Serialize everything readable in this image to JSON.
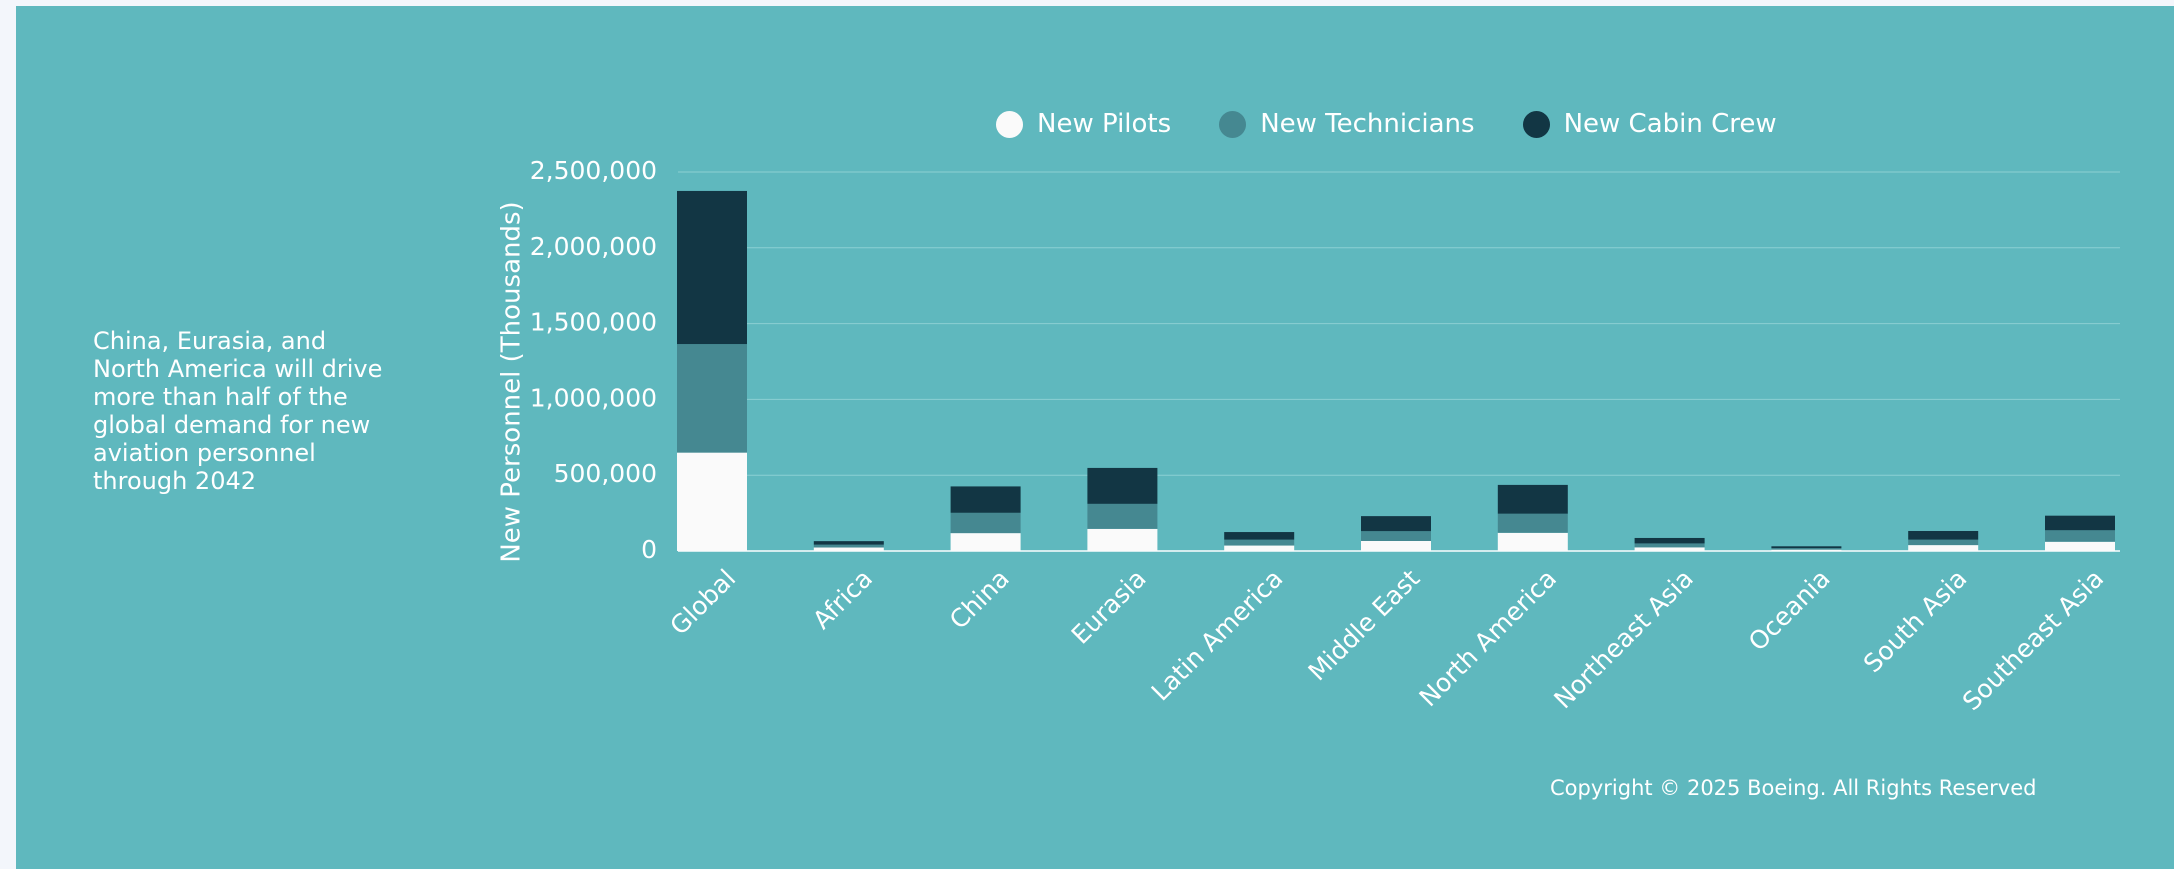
{
  "side_text": {
    "lines": [
      "China, Eurasia, and",
      "North America will drive",
      "more than half of the",
      "global demand for new",
      "aviation personnel",
      "through 2042"
    ]
  },
  "copyright": "Copyright © 2025 Boeing.  All  Rights Reserved",
  "chart_data": {
    "type": "bar",
    "stacked": true,
    "title": "",
    "xlabel": "",
    "ylabel": "New Personnel (Thousands)",
    "ylim": [
      0,
      2500000
    ],
    "yticks": [
      0,
      500000,
      1000000,
      1500000,
      2000000,
      2500000
    ],
    "ytick_labels": [
      "0",
      "500,000",
      "1,000,000",
      "1,500,000",
      "2,000,000",
      "2,500,000"
    ],
    "grid": true,
    "legend_position": "top",
    "categories": [
      "Global",
      "Africa",
      "China",
      "Eurasia",
      "Latin America",
      "Middle East",
      "North America",
      "Northeast Asia",
      "Oceania",
      "South Asia",
      "Southeast Asia"
    ],
    "series": [
      {
        "name": "New Pilots",
        "color": "#fafafa",
        "values": [
          649000,
          23000,
          118000,
          146000,
          36000,
          66000,
          120000,
          24000,
          9000,
          39000,
          61000
        ]
      },
      {
        "name": "New Technicians",
        "color": "#458891",
        "values": [
          716000,
          19000,
          134000,
          165000,
          39000,
          65000,
          126000,
          26000,
          10000,
          36000,
          76000
        ]
      },
      {
        "name": "New Cabin Crew",
        "color": "#123644",
        "values": [
          1010000,
          23000,
          174000,
          237000,
          50000,
          99000,
          190000,
          36000,
          12000,
          57000,
          96000
        ]
      }
    ]
  }
}
